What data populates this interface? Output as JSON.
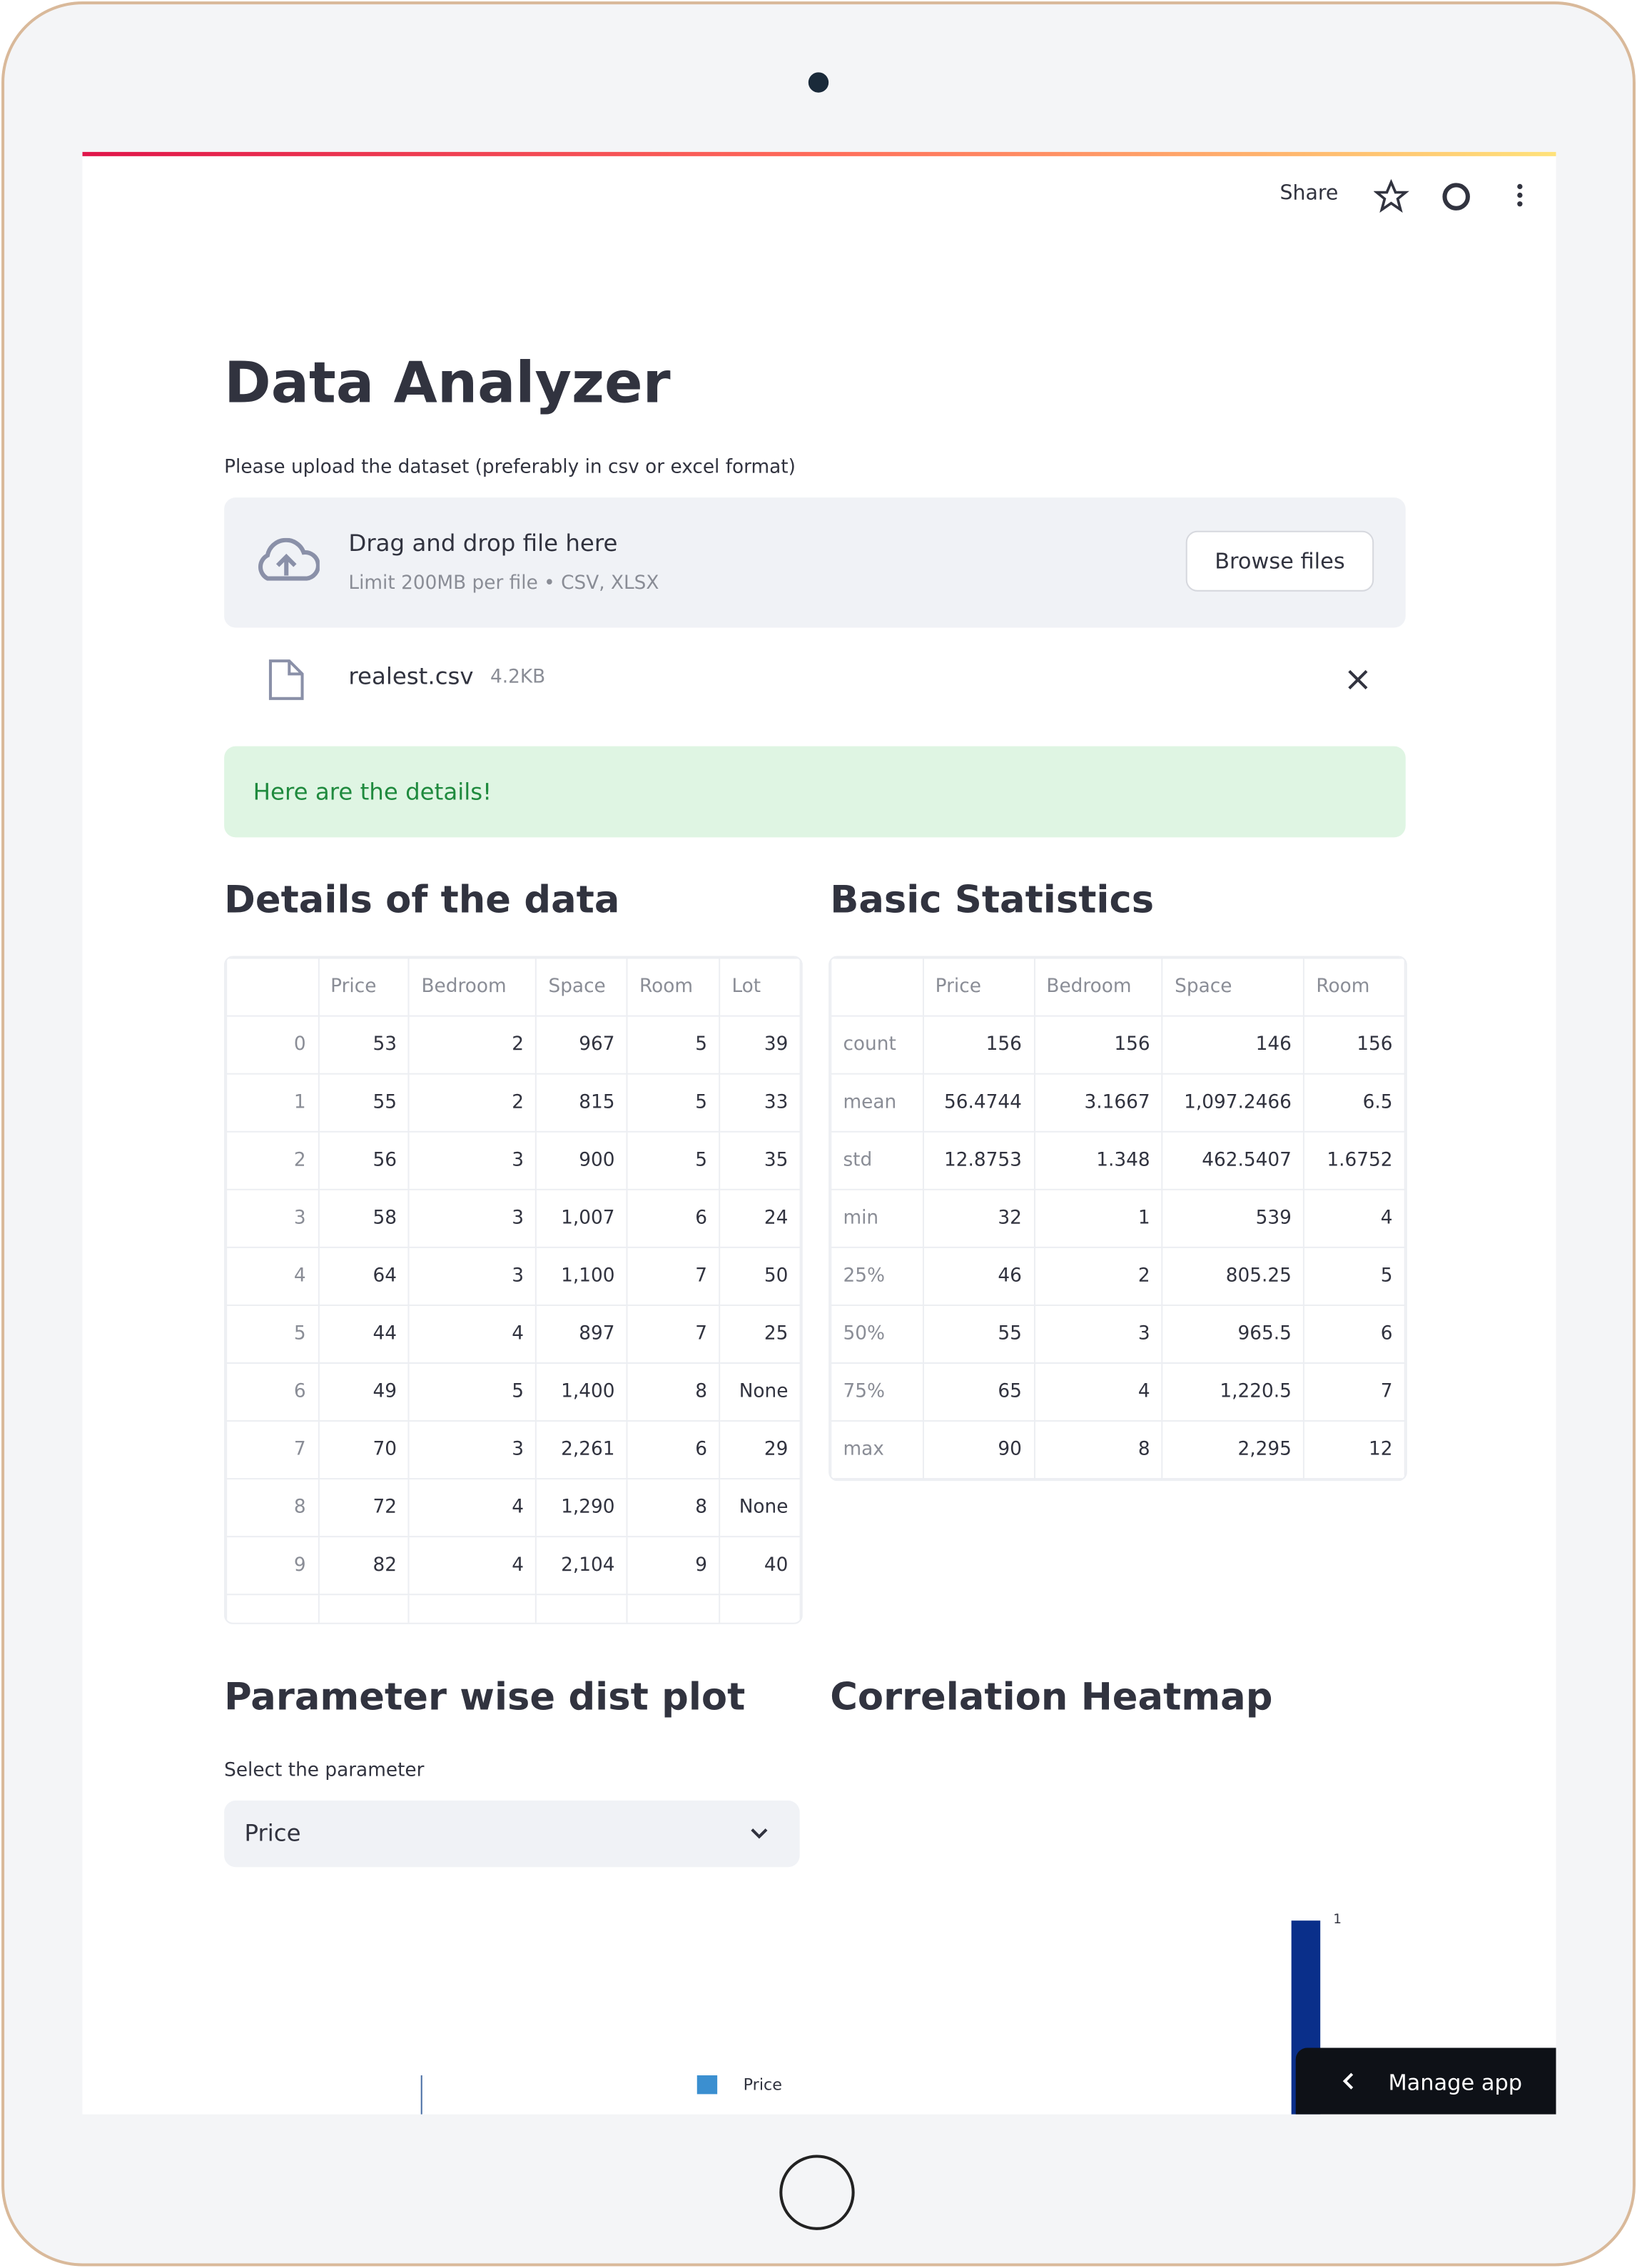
{
  "header": {
    "share": "Share"
  },
  "title": "Data Analyzer",
  "uploader": {
    "label": "Please upload the dataset (preferably in csv or excel format)",
    "drag": "Drag and drop file here",
    "limit": "Limit 200MB per file • CSV, XLSX",
    "button": "Browse files"
  },
  "file": {
    "name": "realest.csv",
    "size": "4.2KB"
  },
  "success": "Here are the details!",
  "details": {
    "heading": "Details of the data",
    "columns": [
      "",
      "Price",
      "Bedroom",
      "Space",
      "Room",
      "Lot"
    ],
    "rows": [
      [
        "0",
        "53",
        "2",
        "967",
        "5",
        "39"
      ],
      [
        "1",
        "55",
        "2",
        "815",
        "5",
        "33"
      ],
      [
        "2",
        "56",
        "3",
        "900",
        "5",
        "35"
      ],
      [
        "3",
        "58",
        "3",
        "1,007",
        "6",
        "24"
      ],
      [
        "4",
        "64",
        "3",
        "1,100",
        "7",
        "50"
      ],
      [
        "5",
        "44",
        "4",
        "897",
        "7",
        "25"
      ],
      [
        "6",
        "49",
        "5",
        "1,400",
        "8",
        "None"
      ],
      [
        "7",
        "70",
        "3",
        "2,261",
        "6",
        "29"
      ],
      [
        "8",
        "72",
        "4",
        "1,290",
        "8",
        "None"
      ],
      [
        "9",
        "82",
        "4",
        "2,104",
        "9",
        "40"
      ]
    ]
  },
  "stats": {
    "heading": "Basic Statistics",
    "columns": [
      "",
      "Price",
      "Bedroom",
      "Space",
      "Room"
    ],
    "rows": [
      [
        "count",
        "156",
        "156",
        "146",
        "156"
      ],
      [
        "mean",
        "56.4744",
        "3.1667",
        "1,097.2466",
        "6.5"
      ],
      [
        "std",
        "12.8753",
        "1.348",
        "462.5407",
        "1.6752"
      ],
      [
        "min",
        "32",
        "1",
        "539",
        "4"
      ],
      [
        "25%",
        "46",
        "2",
        "805.25",
        "5"
      ],
      [
        "50%",
        "55",
        "3",
        "965.5",
        "6"
      ],
      [
        "75%",
        "65",
        "4",
        "1,220.5",
        "7"
      ],
      [
        "max",
        "90",
        "8",
        "2,295",
        "12"
      ]
    ]
  },
  "dist": {
    "heading": "Parameter wise dist plot",
    "select_label": "Select the parameter",
    "selected": "Price",
    "legend": "Price"
  },
  "heatmap": {
    "heading": "Correlation Heatmap",
    "colorbar_tick": "1"
  },
  "manage": "Manage app"
}
